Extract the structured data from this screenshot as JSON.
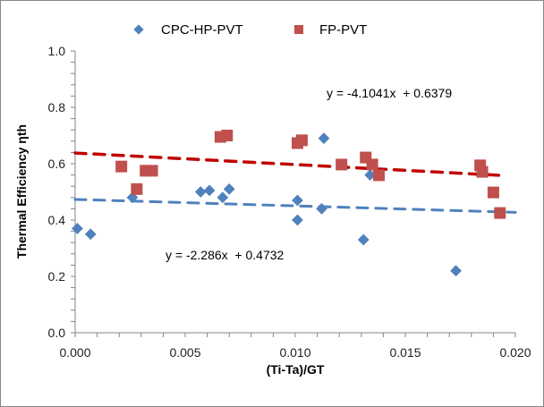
{
  "chart_data": {
    "type": "scatter",
    "title": "",
    "xlabel": "(Ti-Ta)/GT",
    "ylabel": "Thermal Efficiency  ηth",
    "xlim": [
      0,
      0.02
    ],
    "ylim": [
      0,
      1.0
    ],
    "x_ticks": [
      "0.000",
      "0.005",
      "0.010",
      "0.015",
      "0.020"
    ],
    "x_tick_values": [
      0,
      0.005,
      0.01,
      0.015,
      0.02
    ],
    "y_ticks": [
      "0.0",
      "0.2",
      "0.4",
      "0.6",
      "0.8",
      "1.0"
    ],
    "y_tick_values": [
      0,
      0.2,
      0.4,
      0.6,
      0.8,
      1.0
    ],
    "x_minor_step": 0.001,
    "y_minor_step": 0.04,
    "grid": false,
    "legend_position": "top-center",
    "series": [
      {
        "name": "CPC-HP-PVT",
        "marker": "diamond",
        "color": "#4F81BD",
        "x": [
          0.0001,
          0.0007,
          0.0026,
          0.0057,
          0.0061,
          0.0067,
          0.007,
          0.0101,
          0.0101,
          0.0113,
          0.0112,
          0.0131,
          0.0134,
          0.0173
        ],
        "y": [
          0.37,
          0.35,
          0.48,
          0.5,
          0.505,
          0.48,
          0.51,
          0.47,
          0.4,
          0.69,
          0.44,
          0.33,
          0.56,
          0.22
        ],
        "trendline": {
          "slope": -2.286,
          "intercept": 0.4732,
          "equation": "y = -2.286x  + 0.4732",
          "color": "#4F81BD",
          "style": "dashed"
        }
      },
      {
        "name": "FP-PVT",
        "marker": "square",
        "color": "#C0504D",
        "x": [
          0.0021,
          0.0028,
          0.0032,
          0.0035,
          0.0066,
          0.0069,
          0.0101,
          0.0103,
          0.0121,
          0.0132,
          0.0135,
          0.0138,
          0.0184,
          0.0185,
          0.019,
          0.0193
        ],
        "y": [
          0.59,
          0.51,
          0.575,
          0.575,
          0.695,
          0.7,
          0.673,
          0.683,
          0.597,
          0.622,
          0.597,
          0.559,
          0.594,
          0.571,
          0.498,
          0.425
        ],
        "trendline": {
          "slope": -4.1041,
          "intercept": 0.6379,
          "equation": "y = -4.1041x  + 0.6379",
          "color": "#C00000",
          "style": "dashed"
        }
      }
    ]
  }
}
